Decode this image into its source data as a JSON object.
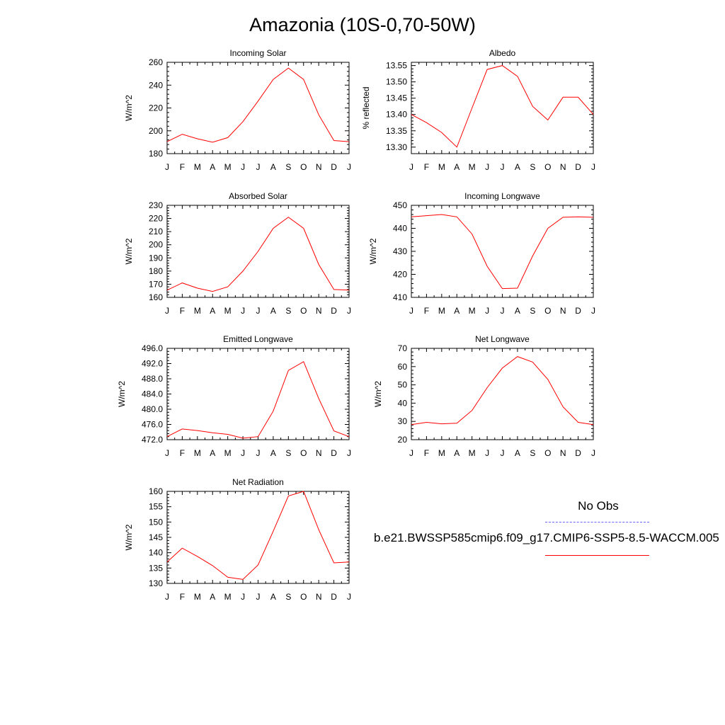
{
  "page": {
    "title": "Amazonia (10S-0,70-50W)"
  },
  "legend": {
    "title": "No Obs",
    "series_label": "b.e21.BWSSP585cmip6.f09_g17.CMIP6-SSP5-8.5-WACCM.005",
    "obs_color": "#6666ff",
    "model_color": "#ff0000"
  },
  "chart_data": [
    {
      "type": "line",
      "title": "Incoming Solar",
      "ylabel": "W/m^2",
      "categories": [
        "J",
        "F",
        "M",
        "A",
        "M",
        "J",
        "J",
        "A",
        "S",
        "O",
        "N",
        "D",
        "J"
      ],
      "ylim": [
        180,
        260
      ],
      "yticks": [
        180,
        200,
        220,
        240,
        260
      ],
      "ytick_labels": [
        "180",
        "200",
        "220",
        "240",
        "260"
      ],
      "series": [
        {
          "values": [
            190.5,
            197,
            193,
            190,
            194,
            208,
            226,
            245,
            255,
            245,
            214,
            191.5,
            190.5
          ],
          "color": "#ff0000"
        }
      ]
    },
    {
      "type": "line",
      "title": "Albedo",
      "ylabel": "% reflected",
      "categories": [
        "J",
        "F",
        "M",
        "A",
        "M",
        "J",
        "J",
        "A",
        "S",
        "O",
        "N",
        "D",
        "J"
      ],
      "ylim": [
        13.28,
        13.56
      ],
      "yticks": [
        13.3,
        13.35,
        13.4,
        13.45,
        13.5,
        13.55
      ],
      "ytick_labels": [
        "13.30",
        "13.35",
        "13.40",
        "13.45",
        "13.50",
        "13.55"
      ],
      "series": [
        {
          "values": [
            13.4,
            13.375,
            13.345,
            13.3,
            13.42,
            13.538,
            13.55,
            13.517,
            13.425,
            13.383,
            13.453,
            13.453,
            13.4
          ],
          "color": "#ff0000"
        }
      ]
    },
    {
      "type": "line",
      "title": "Absorbed Solar",
      "ylabel": "W/m^2",
      "categories": [
        "J",
        "F",
        "M",
        "A",
        "M",
        "J",
        "J",
        "A",
        "S",
        "O",
        "N",
        "D",
        "J"
      ],
      "ylim": [
        160,
        230
      ],
      "yticks": [
        160,
        170,
        180,
        190,
        200,
        210,
        220,
        230
      ],
      "ytick_labels": [
        "160",
        "170",
        "180",
        "190",
        "200",
        "210",
        "220",
        "230"
      ],
      "series": [
        {
          "values": [
            165.5,
            171,
            167,
            164.5,
            168,
            180,
            195,
            212.5,
            221,
            212.5,
            185,
            166,
            165.5
          ],
          "color": "#ff0000"
        }
      ]
    },
    {
      "type": "line",
      "title": "Incoming Longwave",
      "ylabel": "W/m^2",
      "categories": [
        "J",
        "F",
        "M",
        "A",
        "M",
        "J",
        "J",
        "A",
        "S",
        "O",
        "N",
        "D",
        "J"
      ],
      "ylim": [
        410,
        450
      ],
      "yticks": [
        410,
        420,
        430,
        440,
        450
      ],
      "ytick_labels": [
        "410",
        "420",
        "430",
        "440",
        "450"
      ],
      "series": [
        {
          "values": [
            445,
            445.5,
            446,
            445,
            437.5,
            423.5,
            413.8,
            414,
            428,
            440,
            444.8,
            445,
            444.8
          ],
          "color": "#ff0000"
        }
      ]
    },
    {
      "type": "line",
      "title": "Emitted Longwave",
      "ylabel": "W/m^2",
      "categories": [
        "J",
        "F",
        "M",
        "A",
        "M",
        "J",
        "J",
        "A",
        "S",
        "O",
        "N",
        "D",
        "J"
      ],
      "ylim": [
        472,
        496
      ],
      "yticks": [
        472,
        476,
        480,
        484,
        488,
        492,
        496
      ],
      "ytick_labels": [
        "472.0",
        "476.0",
        "480.0",
        "484.0",
        "488.0",
        "492.0",
        "496.0"
      ],
      "series": [
        {
          "values": [
            472.8,
            474.8,
            474.4,
            473.8,
            473.4,
            472.4,
            472.8,
            479.5,
            490.2,
            492.5,
            482.8,
            474.3,
            472.8
          ],
          "color": "#ff0000"
        }
      ]
    },
    {
      "type": "line",
      "title": "Net Longwave",
      "ylabel": "W/m^2",
      "categories": [
        "J",
        "F",
        "M",
        "A",
        "M",
        "J",
        "J",
        "A",
        "S",
        "O",
        "N",
        "D",
        "J"
      ],
      "ylim": [
        20,
        70
      ],
      "yticks": [
        20,
        30,
        40,
        50,
        60,
        70
      ],
      "ytick_labels": [
        "20",
        "30",
        "40",
        "50",
        "60",
        "70"
      ],
      "series": [
        {
          "values": [
            28.2,
            29.5,
            28.7,
            29,
            36,
            48.5,
            59.2,
            65.5,
            62.5,
            53,
            38,
            29.5,
            28.2
          ],
          "color": "#ff0000"
        }
      ]
    },
    {
      "type": "line",
      "title": "Net Radiation",
      "ylabel": "W/m^2",
      "categories": [
        "J",
        "F",
        "M",
        "A",
        "M",
        "J",
        "J",
        "A",
        "S",
        "O",
        "N",
        "D",
        "J"
      ],
      "ylim": [
        130,
        160
      ],
      "yticks": [
        130,
        135,
        140,
        145,
        150,
        155,
        160
      ],
      "ytick_labels": [
        "130",
        "135",
        "140",
        "145",
        "150",
        "155",
        "160"
      ],
      "series": [
        {
          "values": [
            137,
            141.5,
            138.8,
            135.8,
            132,
            131.3,
            136,
            147,
            158.5,
            160,
            147.5,
            136.7,
            137
          ],
          "color": "#ff0000"
        }
      ]
    }
  ]
}
